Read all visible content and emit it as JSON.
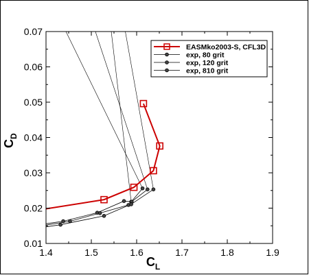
{
  "chart_data": {
    "type": "line",
    "xlabel": {
      "main": "C",
      "sub": "L"
    },
    "ylabel": {
      "main": "C",
      "sub": "D"
    },
    "xlim": [
      1.4,
      1.9
    ],
    "ylim": [
      0.01,
      0.07
    ],
    "xticks": [
      1.4,
      1.5,
      1.6,
      1.7,
      1.8,
      1.9
    ],
    "yticks": [
      0.01,
      0.02,
      0.03,
      0.04,
      0.05,
      0.06,
      0.07
    ],
    "xtick_labels": [
      "1.4",
      "1.5",
      "1.6",
      "1.7",
      "1.8",
      "1.9"
    ],
    "ytick_labels": [
      "0.01",
      "0.02",
      "0.03",
      "0.04",
      "0.05",
      "0.06",
      "0.07"
    ],
    "legend_position": "top-right",
    "series": [
      {
        "name": "EASMko2003-S, CFL3D",
        "color": "#cc0000",
        "marker": "square",
        "x": [
          1.4,
          1.528,
          1.594,
          1.615,
          1.637,
          1.651
        ],
        "y": [
          0.0198,
          0.0224,
          0.0259,
          0.0496,
          0.0306,
          0.0376
        ],
        "draw_order": [
          0,
          1,
          2,
          4,
          5,
          3
        ]
      },
      {
        "name": "exp, 80 grit",
        "color": "#000000",
        "marker": "circle",
        "x": [
          1.4,
          1.438,
          1.513,
          1.572,
          1.588,
          1.613
        ],
        "y": [
          0.0156,
          0.0163,
          0.0187,
          0.022,
          0.0218,
          0.0256
        ]
      },
      {
        "name": "exp, 120 grit",
        "color": "#000000",
        "marker": "circle",
        "x": [
          1.4,
          1.453,
          1.519,
          1.582,
          1.589,
          1.624
        ],
        "y": [
          0.0152,
          0.0163,
          0.0186,
          0.0209,
          0.0218,
          0.0253
        ]
      },
      {
        "name": "exp, 810 grit",
        "color": "#000000",
        "marker": "circle",
        "x": [
          1.4,
          1.432,
          1.528,
          1.588,
          1.637
        ],
        "y": [
          0.0147,
          0.0153,
          0.0178,
          0.0211,
          0.0253
        ]
      }
    ],
    "polar_lines": [
      {
        "x": [
          1.444,
          1.613
        ],
        "y": [
          0.07,
          0.0256
        ]
      },
      {
        "x": [
          1.509,
          1.624
        ],
        "y": [
          0.07,
          0.0253
        ]
      },
      {
        "x": [
          1.544,
          1.588
        ],
        "y": [
          0.07,
          0.0218
        ]
      },
      {
        "x": [
          1.575,
          1.637
        ],
        "y": [
          0.07,
          0.0253
        ]
      }
    ]
  }
}
